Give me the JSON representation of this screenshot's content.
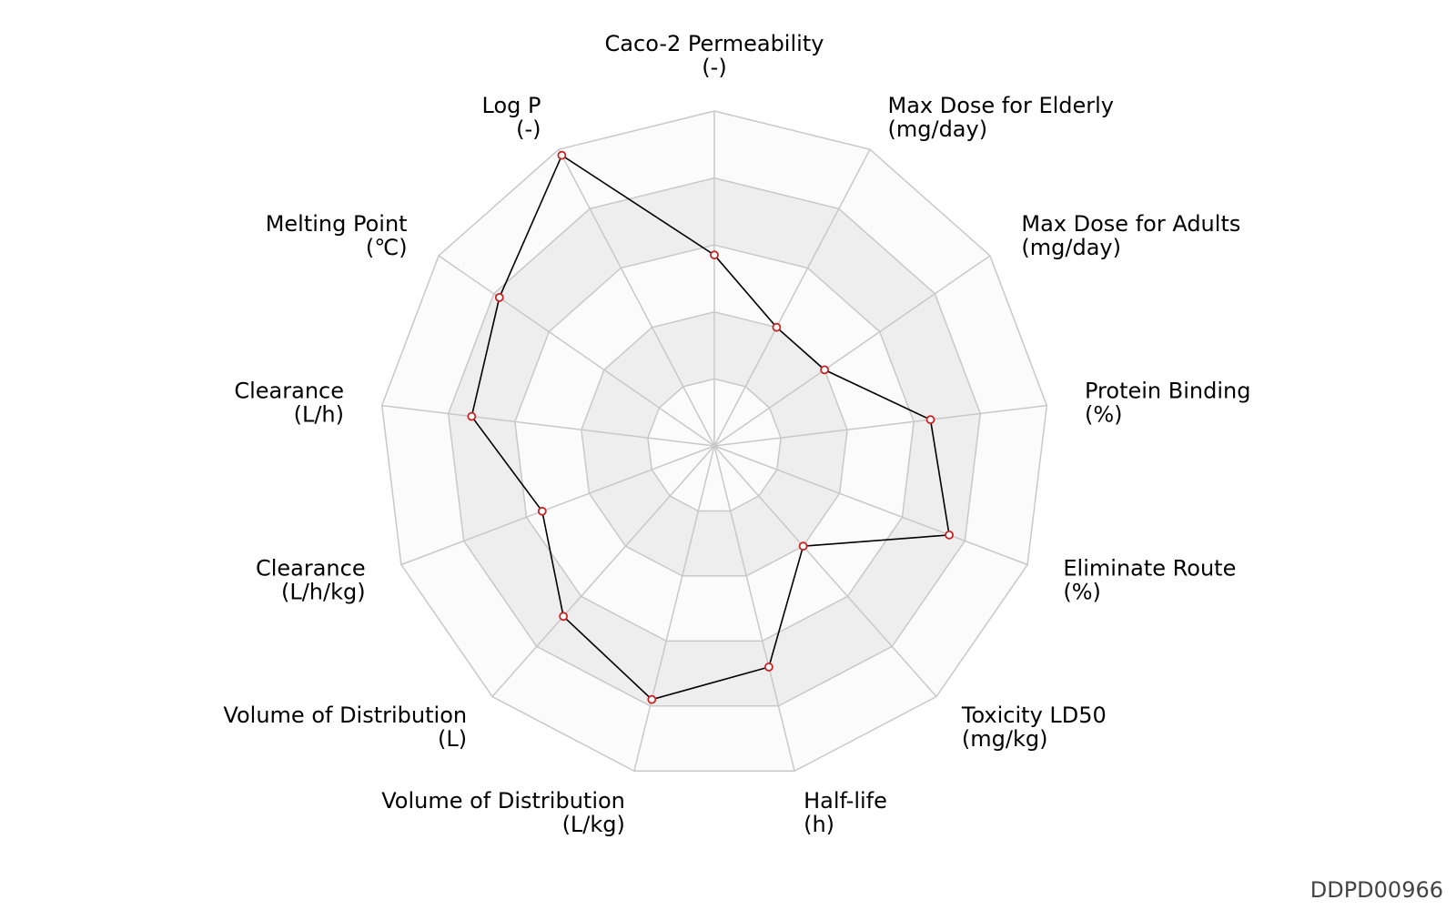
{
  "chart_data": {
    "type": "radar",
    "rmax": 1.0,
    "ring_levels": [
      0.2,
      0.4,
      0.6,
      0.8,
      1.0
    ],
    "grid": true,
    "axes": [
      {
        "name": "Caco-2 Permeability",
        "unit": "(-)",
        "value": 0.57
      },
      {
        "name": "Max Dose for Elderly",
        "unit": "(mg/day)",
        "value": 0.4
      },
      {
        "name": "Max Dose for Adults",
        "unit": "(mg/day)",
        "value": 0.4
      },
      {
        "name": "Protein Binding",
        "unit": "(%)",
        "value": 0.65
      },
      {
        "name": "Eliminate Route",
        "unit": "(%)",
        "value": 0.75
      },
      {
        "name": "Toxicity LD50",
        "unit": "(mg/kg)",
        "value": 0.4
      },
      {
        "name": "Half-life",
        "unit": "(h)",
        "value": 0.68
      },
      {
        "name": "Volume of Distribution",
        "unit": "(L/kg)",
        "value": 0.78
      },
      {
        "name": "Volume of Distribution",
        "unit": "(L)",
        "value": 0.68
      },
      {
        "name": "Clearance",
        "unit": "(L/h/kg)",
        "value": 0.55
      },
      {
        "name": "Clearance",
        "unit": "(L/h)",
        "value": 0.73
      },
      {
        "name": "Melting Point",
        "unit": "(℃)",
        "value": 0.78
      },
      {
        "name": "Log P",
        "unit": "(-)",
        "value": 0.98
      }
    ],
    "colors": {
      "grid_line": "#c8c8c8",
      "band_dark": "#eeeeee",
      "band_light": "#fbfbfb",
      "series_line": "#000000",
      "marker_edge": "#cc2222",
      "marker_fill": "#ffffff"
    }
  },
  "doc_id": "DDPD00966"
}
